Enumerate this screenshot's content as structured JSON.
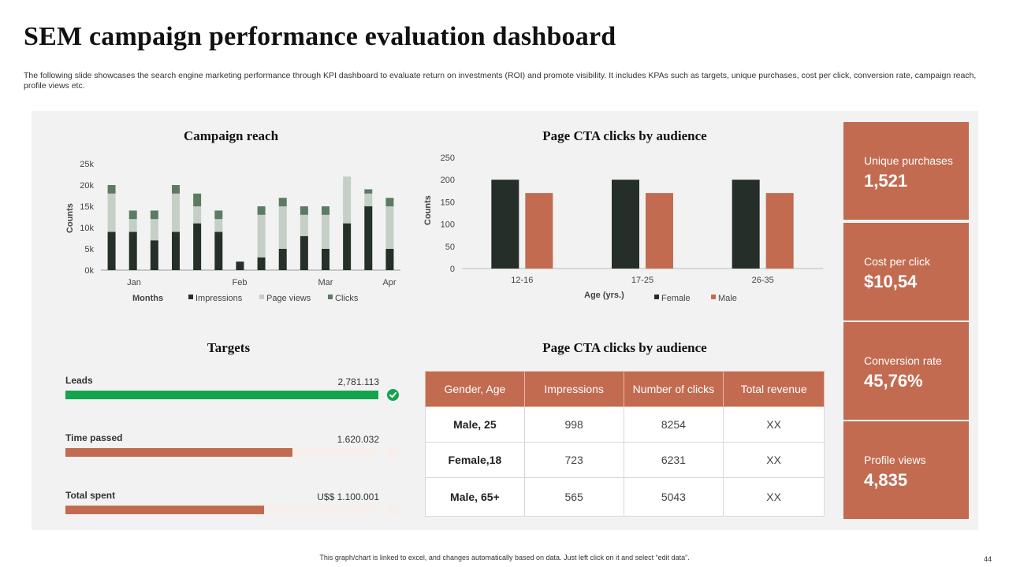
{
  "title": "SEM campaign performance evaluation dashboard",
  "subtitle": "The following slide showcases the search engine marketing performance through KPI dashboard to evaluate return on investments (ROI) and promote visibility. It includes KPAs such as targets, unique purchases, cost per click, conversion rate, campaign reach, profile views etc.",
  "charts": {
    "reach_title": "Campaign reach",
    "cta_title": "Page CTA clicks by audience",
    "targets_title": "Targets",
    "table_title": "Page CTA clicks by audience"
  },
  "chart_data": [
    {
      "type": "bar",
      "stacked": true,
      "title": "Campaign reach",
      "xlabel": "Months",
      "ylabel": "Counts",
      "ylim": [
        0,
        25000
      ],
      "yticks": [
        "0k",
        "5k",
        "10k",
        "15k",
        "20k",
        "25k"
      ],
      "xtick_labels": [
        "Jan",
        "Feb",
        "Mar",
        "Apr"
      ],
      "series": [
        {
          "name": "Impressions",
          "color": "#243028",
          "values": [
            9000,
            9000,
            7000,
            9000,
            11000,
            9000,
            2000,
            3000,
            5000,
            8000,
            5000,
            11000,
            15000,
            5000
          ]
        },
        {
          "name": "Page views",
          "color": "#c5cfc5",
          "values": [
            9000,
            3000,
            5000,
            9000,
            4000,
            3000,
            0,
            10000,
            10000,
            5000,
            8000,
            11000,
            3000,
            10000
          ]
        },
        {
          "name": "Clicks",
          "color": "#5d7a63",
          "values": [
            2000,
            2000,
            2000,
            2000,
            3000,
            2000,
            0,
            2000,
            2000,
            2000,
            2000,
            0,
            1000,
            2000
          ]
        }
      ]
    },
    {
      "type": "bar",
      "title": "Page CTA clicks by audience",
      "xlabel": "Age (yrs.)",
      "ylabel": "Counts",
      "ylim": [
        0,
        250
      ],
      "yticks": [
        "0",
        "50",
        "100",
        "150",
        "200",
        "250"
      ],
      "categories": [
        "12-16",
        "17-25",
        "26-35"
      ],
      "series": [
        {
          "name": "Female",
          "color": "#262e29",
          "values": [
            200,
            200,
            200
          ]
        },
        {
          "name": "Male",
          "color": "#c26b50",
          "values": [
            170,
            170,
            170
          ]
        }
      ]
    }
  ],
  "targets": [
    {
      "label": "Leads",
      "value": "2,781.113",
      "progress": 1.0,
      "color": "#14a44d",
      "done": true
    },
    {
      "label": "Time passed",
      "value": "1.620.032",
      "progress": 0.725,
      "color": "#c26b50",
      "done": false
    },
    {
      "label": "Total spent",
      "value": "U$$ 1.100.001",
      "progress": 0.635,
      "color": "#c26b50",
      "done": false
    }
  ],
  "table": {
    "headers": [
      "Gender, Age",
      "Impressions",
      "Number of clicks",
      "Total revenue"
    ],
    "rows": [
      [
        "Male, 25",
        "998",
        "8254",
        "XX"
      ],
      [
        "Female,18",
        "723",
        "6231",
        "XX"
      ],
      [
        "Male, 65+",
        "565",
        "5043",
        "XX"
      ]
    ]
  },
  "kpis": [
    {
      "label": "Unique purchases",
      "value": "1,521"
    },
    {
      "label": "Cost per click",
      "value": "$10,54"
    },
    {
      "label": "Conversion rate",
      "value": "45,76%"
    },
    {
      "label": "Profile views",
      "value": "4,835"
    }
  ],
  "footnote": "This graph/chart is linked to excel, and changes automatically based on data. Just left click on it and select “edit data”.",
  "page_number": "44"
}
